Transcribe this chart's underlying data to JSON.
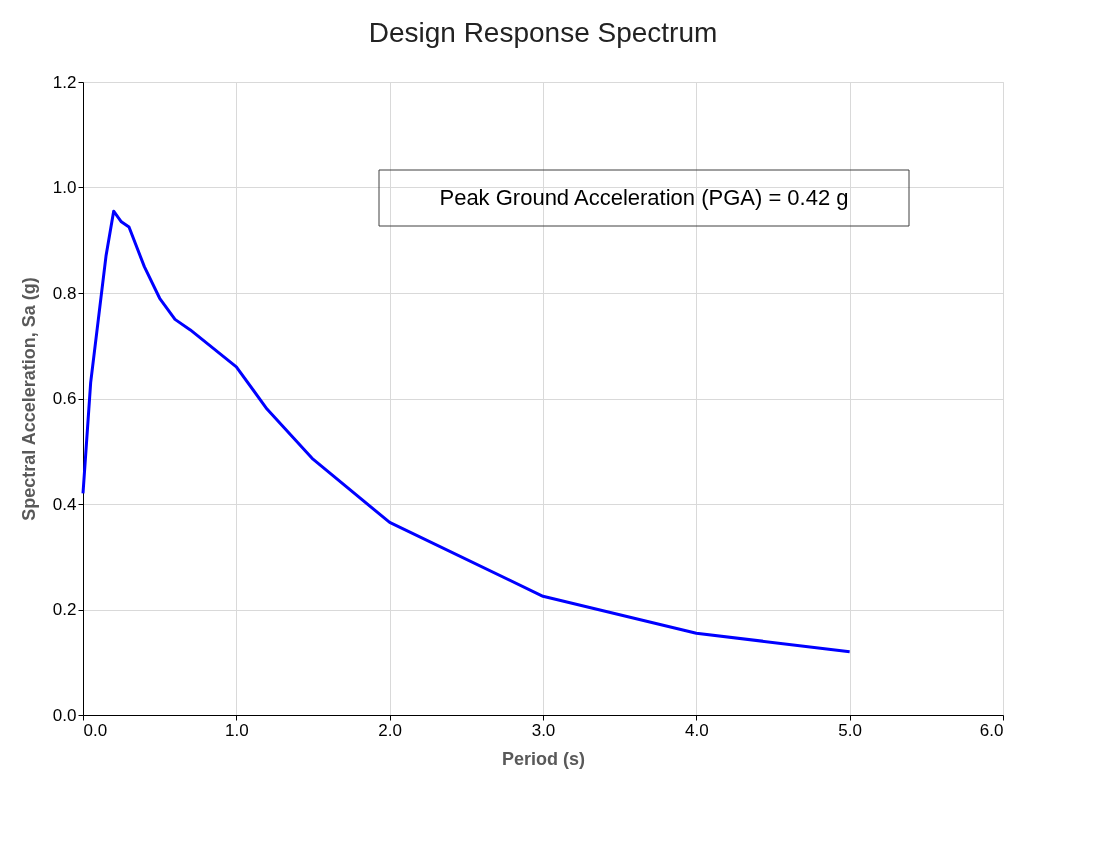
{
  "chart_data": {
    "type": "line",
    "title": "Design Response Spectrum",
    "xlabel": "Period (s)",
    "ylabel": "Spectral Acceleration, Sa (g)",
    "x": [
      0,
      0.05,
      0.1,
      0.15,
      0.2,
      0.25,
      0.3,
      0.4,
      0.5,
      0.6,
      0.7,
      1.0,
      1.2,
      1.5,
      2.0,
      3.0,
      4.0,
      5.0
    ],
    "series": [
      {
        "color": "#0000ff",
        "values": [
          0.42,
          0.63,
          0.75,
          0.87,
          0.955,
          0.935,
          0.925,
          0.85,
          0.79,
          0.75,
          0.73,
          0.66,
          0.58,
          0.485,
          0.365,
          0.225,
          0.155,
          0.12
        ]
      }
    ],
    "xlim": [
      0,
      6
    ],
    "xticks": [
      {
        "value": 0,
        "label": "0.0"
      },
      {
        "value": 1,
        "label": "1.0"
      },
      {
        "value": 2,
        "label": "2.0"
      },
      {
        "value": 3,
        "label": "3.0"
      },
      {
        "value": 4,
        "label": "4.0"
      },
      {
        "value": 5,
        "label": "5.0"
      },
      {
        "value": 6,
        "label": "6.0"
      }
    ],
    "ylim": [
      0,
      1.2
    ],
    "yticks": [
      {
        "value": 0,
        "label": "0.0"
      },
      {
        "value": 0.2,
        "label": "0.2"
      },
      {
        "value": 0.4,
        "label": "0.4"
      },
      {
        "value": 0.6,
        "label": "0.6"
      },
      {
        "value": 0.8,
        "label": "0.8"
      },
      {
        "value": 1.0,
        "label": "1.0"
      },
      {
        "value": 1.2,
        "label": "1.2"
      }
    ],
    "annotations": [
      "Peak Ground Acceleration (PGA) = 0.42 g"
    ],
    "grid": true,
    "line_style": "solid",
    "marker": "none"
  }
}
